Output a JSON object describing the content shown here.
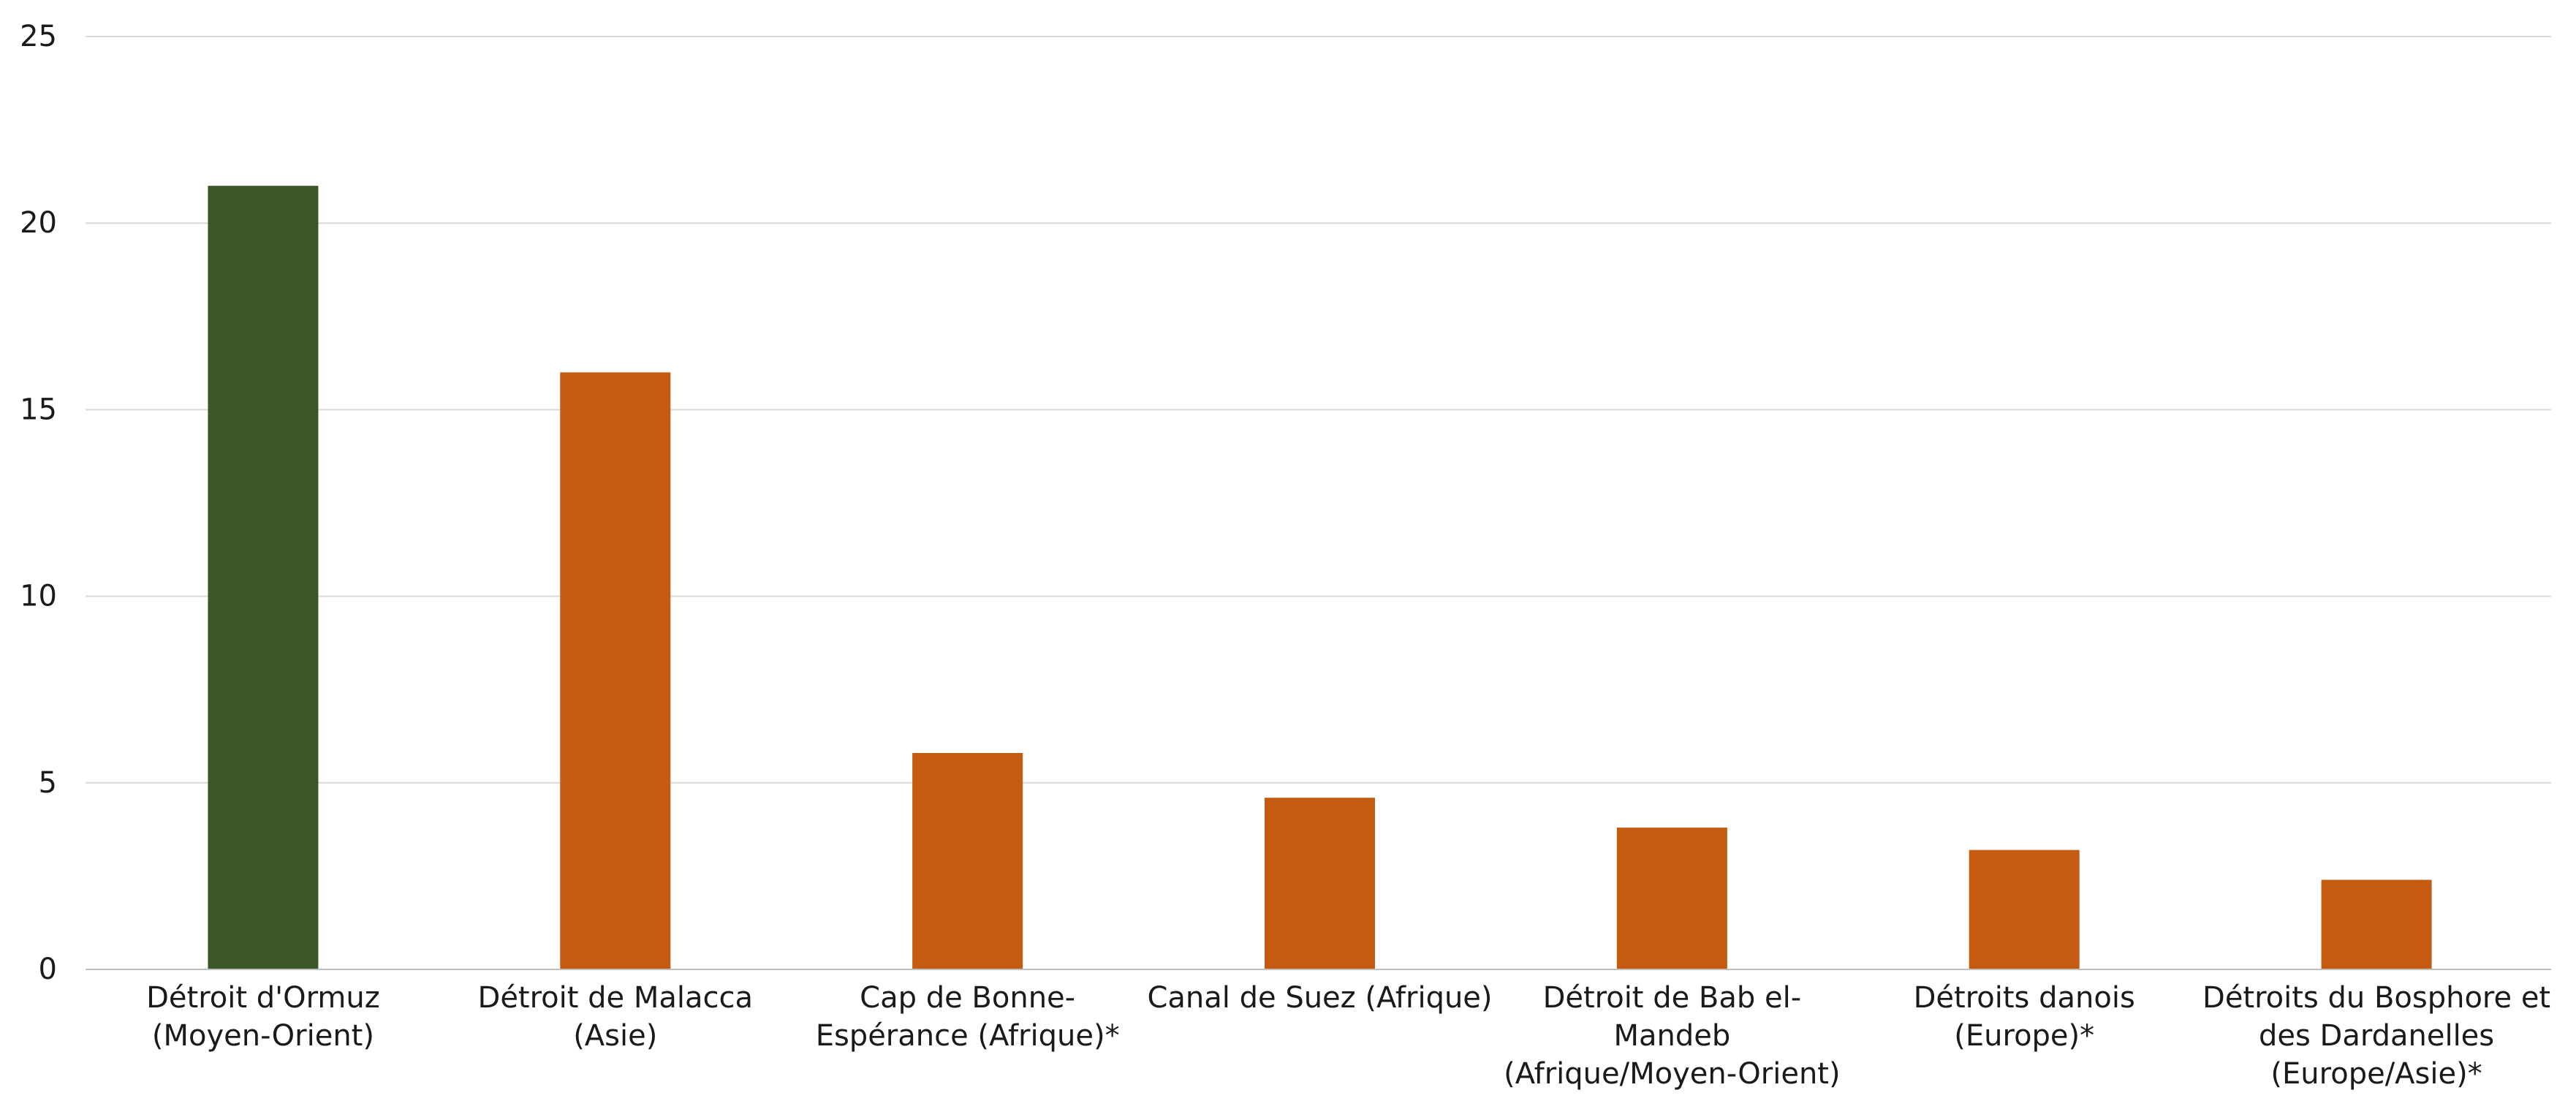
{
  "chart_data": {
    "type": "bar",
    "categories": [
      [
        "Détroit d'Ormuz",
        "(Moyen-Orient)"
      ],
      [
        "Détroit de Malacca",
        "(Asie)"
      ],
      [
        "Cap de Bonne-",
        "Espérance (Afrique)*"
      ],
      [
        "Canal de Suez (Afrique)"
      ],
      [
        "Détroit de Bab el-",
        "Mandeb",
        "(Afrique/Moyen-Orient)"
      ],
      [
        "Détroits danois",
        "(Europe)*"
      ],
      [
        "Détroits du Bosphore et",
        "des Dardanelles",
        "(Europe/Asie)*"
      ]
    ],
    "values": [
      21,
      16,
      5.8,
      4.6,
      3.8,
      3.2,
      2.4
    ],
    "colors": [
      "#3b5726",
      "#c55a11",
      "#c55a11",
      "#c55a11",
      "#c55a11",
      "#c55a11",
      "#c55a11"
    ],
    "ylim": [
      0,
      25
    ],
    "yticks": [
      0,
      5,
      10,
      15,
      20,
      25
    ],
    "grid": true,
    "legend": "none"
  }
}
